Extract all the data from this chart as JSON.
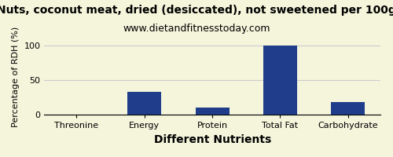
{
  "title": "Nuts, coconut meat, dried (desiccated), not sweetened per 100g",
  "subtitle": "www.dietandfitnesstoday.com",
  "xlabel": "Different Nutrients",
  "ylabel": "Percentage of RDH (%)",
  "categories": [
    "Threonine",
    "Energy",
    "Protein",
    "Total Fat",
    "Carbohydrate"
  ],
  "values": [
    0,
    33,
    11,
    100,
    18
  ],
  "bar_color": "#1f3d8a",
  "ylim": [
    0,
    110
  ],
  "yticks": [
    0,
    50,
    100
  ],
  "background_color": "#f5f5dc",
  "grid_color": "#cccccc",
  "title_fontsize": 10,
  "subtitle_fontsize": 9,
  "xlabel_fontsize": 10,
  "ylabel_fontsize": 8,
  "tick_fontsize": 8
}
